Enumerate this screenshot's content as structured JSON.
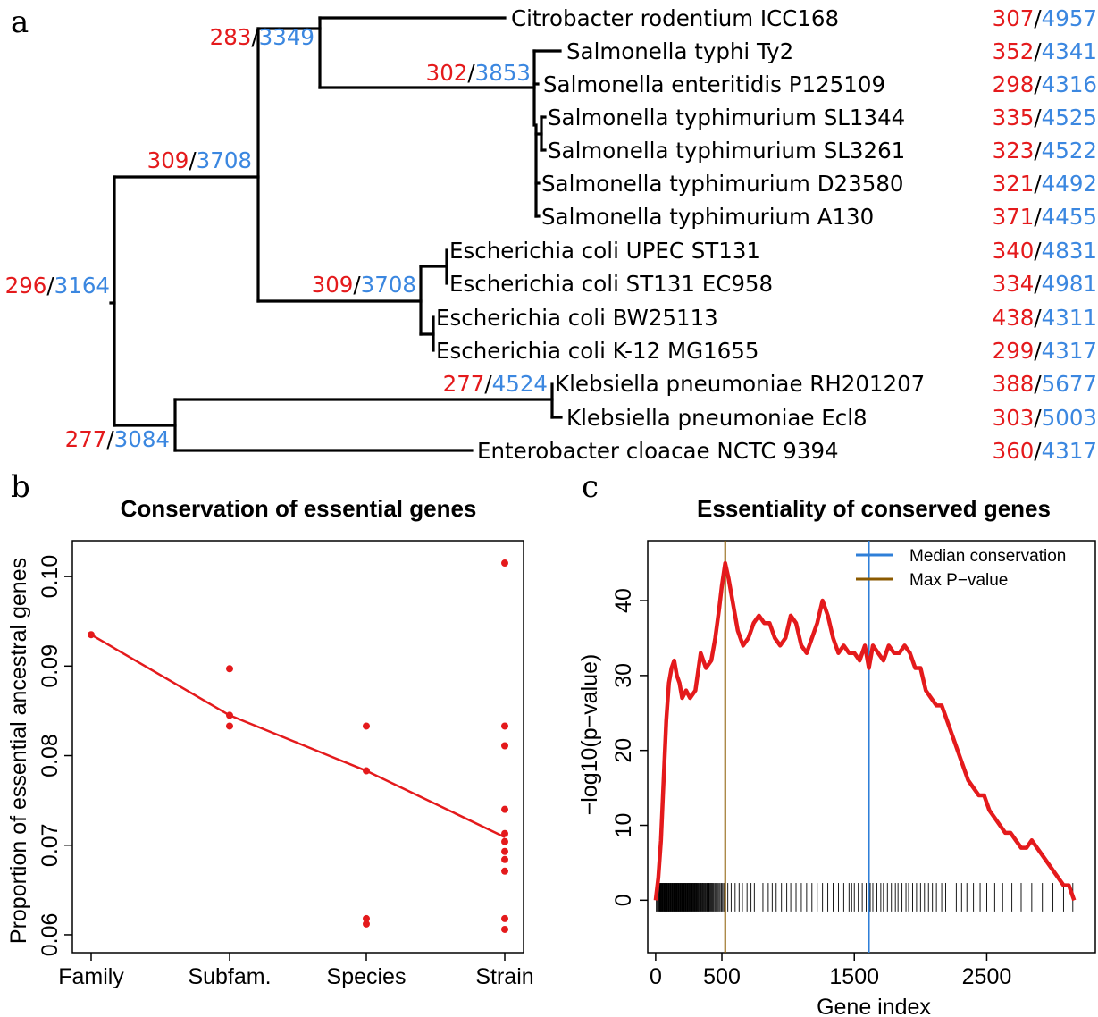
{
  "colors": {
    "essential": "#e41a1c",
    "ancestral": "#3b87e0",
    "median_line": "#2f7fd8",
    "max_line": "#8b5a00",
    "tree": "#000000"
  },
  "panel_a": {
    "letter": "a",
    "tips": [
      {
        "name": "Citrobacter rodentium ICC168",
        "ess": "307",
        "tot": "4957"
      },
      {
        "name": "Salmonella typhi Ty2",
        "ess": "352",
        "tot": "4341"
      },
      {
        "name": "Salmonella enteritidis P125109",
        "ess": "298",
        "tot": "4316"
      },
      {
        "name": "Salmonella typhimurium SL1344",
        "ess": "335",
        "tot": "4525"
      },
      {
        "name": "Salmonella typhimurium SL3261",
        "ess": "323",
        "tot": "4522"
      },
      {
        "name": "Salmonella typhimurium D23580",
        "ess": "321",
        "tot": "4492"
      },
      {
        "name": "Salmonella typhimurium A130",
        "ess": "371",
        "tot": "4455"
      },
      {
        "name": "Escherichia coli UPEC ST131",
        "ess": "340",
        "tot": "4831"
      },
      {
        "name": "Escherichia coli ST131 EC958",
        "ess": "334",
        "tot": "4981"
      },
      {
        "name": "Escherichia coli BW25113",
        "ess": "438",
        "tot": "4311"
      },
      {
        "name": "Escherichia coli K-12 MG1655",
        "ess": "299",
        "tot": "4317"
      },
      {
        "name": "Klebsiella pneumoniae RH201207",
        "ess": "388",
        "tot": "5677"
      },
      {
        "name": "Klebsiella pneumoniae Ecl8",
        "ess": "303",
        "tot": "5003"
      },
      {
        "name": "Enterobacter cloacae NCTC 9394",
        "ess": "360",
        "tot": "4317"
      }
    ],
    "nodes": [
      {
        "id": "root",
        "ess": "296",
        "tot": "3164"
      },
      {
        "id": "ecse",
        "ess": "309",
        "tot": "3708"
      },
      {
        "id": "csal",
        "ess": "283",
        "tot": "3349"
      },
      {
        "id": "sal",
        "ess": "302",
        "tot": "3853"
      },
      {
        "id": "eco",
        "ess": "309",
        "tot": "3708"
      },
      {
        "id": "kle",
        "ess": "277",
        "tot": "3084"
      },
      {
        "id": "kpn",
        "ess": "277",
        "tot": "4524"
      }
    ],
    "separator": "/"
  },
  "panel_b": {
    "letter": "b",
    "chart_data": {
      "type": "scatter",
      "title": "Conservation of essential genes",
      "xlabel": "",
      "ylabel": "Proportion of essential ancestral genes",
      "categories": [
        "Family",
        "Subfam.",
        "Species",
        "Strain"
      ],
      "ylim": [
        0.058,
        0.104
      ],
      "yticks": [
        "0.06",
        "0.07",
        "0.08",
        "0.09",
        "0.10"
      ],
      "points": [
        {
          "x": "Family",
          "y": 0.0935
        },
        {
          "x": "Subfam.",
          "y": 0.0897
        },
        {
          "x": "Subfam.",
          "y": 0.0845
        },
        {
          "x": "Subfam.",
          "y": 0.0833
        },
        {
          "x": "Species",
          "y": 0.0833
        },
        {
          "x": "Species",
          "y": 0.0783
        },
        {
          "x": "Species",
          "y": 0.0618
        },
        {
          "x": "Species",
          "y": 0.0612
        },
        {
          "x": "Strain",
          "y": 0.1015
        },
        {
          "x": "Strain",
          "y": 0.0833
        },
        {
          "x": "Strain",
          "y": 0.0811
        },
        {
          "x": "Strain",
          "y": 0.074
        },
        {
          "x": "Strain",
          "y": 0.0713
        },
        {
          "x": "Strain",
          "y": 0.0704
        },
        {
          "x": "Strain",
          "y": 0.0693
        },
        {
          "x": "Strain",
          "y": 0.0684
        },
        {
          "x": "Strain",
          "y": 0.0671
        },
        {
          "x": "Strain",
          "y": 0.0618
        },
        {
          "x": "Strain",
          "y": 0.0606
        }
      ],
      "mean_line": [
        {
          "x": "Family",
          "y": 0.0935
        },
        {
          "x": "Subfam.",
          "y": 0.0845
        },
        {
          "x": "Species",
          "y": 0.0783
        },
        {
          "x": "Strain",
          "y": 0.0709
        }
      ]
    }
  },
  "panel_c": {
    "letter": "c",
    "chart_data": {
      "type": "line",
      "title": "Essentiality of conserved genes",
      "xlabel": "Gene index",
      "ylabel": "−log10(p−value)",
      "xlim": [
        -60,
        3320
      ],
      "ylim": [
        -7,
        48
      ],
      "xticks": [
        "0",
        "500",
        "1500",
        "2500"
      ],
      "yticks": [
        "0",
        "10",
        "20",
        "30",
        "40"
      ],
      "legend": [
        "Median conservation",
        "Max P−value"
      ],
      "legend_position": "top-right",
      "max_pvalue_x": 525,
      "median_conservation_x": 1610,
      "series": [
        {
          "x": [
            0,
            20,
            40,
            60,
            80,
            100,
            120,
            140,
            160,
            180,
            200,
            230,
            260,
            300,
            340,
            380,
            420,
            450,
            480,
            500,
            525,
            550,
            580,
            620,
            660,
            700,
            740,
            780,
            820,
            860,
            900,
            940,
            980,
            1020,
            1060,
            1100,
            1140,
            1180,
            1220,
            1260,
            1300,
            1340,
            1380,
            1420,
            1460,
            1500,
            1540,
            1580,
            1610,
            1640,
            1680,
            1720,
            1760,
            1800,
            1840,
            1880,
            1920,
            1960,
            2000,
            2040,
            2080,
            2120,
            2160,
            2200,
            2240,
            2280,
            2320,
            2360,
            2400,
            2440,
            2480,
            2520,
            2560,
            2600,
            2640,
            2680,
            2720,
            2760,
            2800,
            2840,
            2880,
            2920,
            2960,
            3000,
            3040,
            3080,
            3120,
            3160
          ],
          "y": [
            0,
            3,
            8,
            16,
            24,
            29,
            31,
            32,
            30,
            29,
            27,
            28,
            27,
            28,
            33,
            31,
            32,
            35,
            39,
            42,
            45,
            43,
            40,
            36,
            34,
            35,
            37,
            38,
            37,
            37,
            35,
            34,
            35,
            38,
            37,
            34,
            33,
            35,
            37,
            40,
            38,
            35,
            33,
            34,
            33,
            33,
            32,
            34,
            31,
            34,
            33,
            32,
            34,
            33,
            33,
            34,
            33,
            31,
            31,
            28,
            27,
            26,
            26,
            24,
            22,
            20,
            18,
            16,
            15,
            14,
            14,
            12,
            11,
            10,
            9,
            9,
            8,
            7,
            7,
            8,
            7,
            6,
            5,
            4,
            3,
            2,
            2,
            0
          ]
        }
      ],
      "rug": [
        5,
        12,
        18,
        22,
        28,
        33,
        37,
        41,
        45,
        50,
        54,
        58,
        63,
        67,
        71,
        75,
        80,
        84,
        88,
        93,
        97,
        101,
        106,
        110,
        114,
        118,
        123,
        127,
        131,
        136,
        140,
        145,
        149,
        153,
        158,
        162,
        166,
        171,
        175,
        180,
        184,
        188,
        193,
        197,
        202,
        206,
        211,
        215,
        220,
        224,
        229,
        233,
        238,
        243,
        247,
        252,
        257,
        262,
        266,
        271,
        276,
        281,
        286,
        291,
        296,
        301,
        306,
        311,
        317,
        322,
        327,
        333,
        338,
        344,
        350,
        355,
        361,
        367,
        373,
        379,
        386,
        392,
        399,
        405,
        412,
        419,
        426,
        433,
        440,
        448,
        455,
        463,
        471,
        479,
        487,
        496,
        505,
        514,
        523,
        545,
        570,
        600,
        630,
        655,
        690,
        720,
        745,
        780,
        810,
        850,
        880,
        910,
        950,
        990,
        1020,
        1060,
        1100,
        1140,
        1180,
        1220,
        1260,
        1300,
        1340,
        1380,
        1420,
        1460,
        1480,
        1500,
        1530,
        1560,
        1590,
        1620,
        1640,
        1670,
        1700,
        1720,
        1750,
        1780,
        1810,
        1830,
        1860,
        1890,
        1910,
        1940,
        1970,
        2000,
        2030,
        2060,
        2090,
        2120,
        2160,
        2190,
        2230,
        2270,
        2310,
        2350,
        2400,
        2450,
        2500,
        2560,
        2620,
        2690,
        2760,
        2840,
        2920,
        3000,
        3080,
        3150
      ]
    }
  }
}
